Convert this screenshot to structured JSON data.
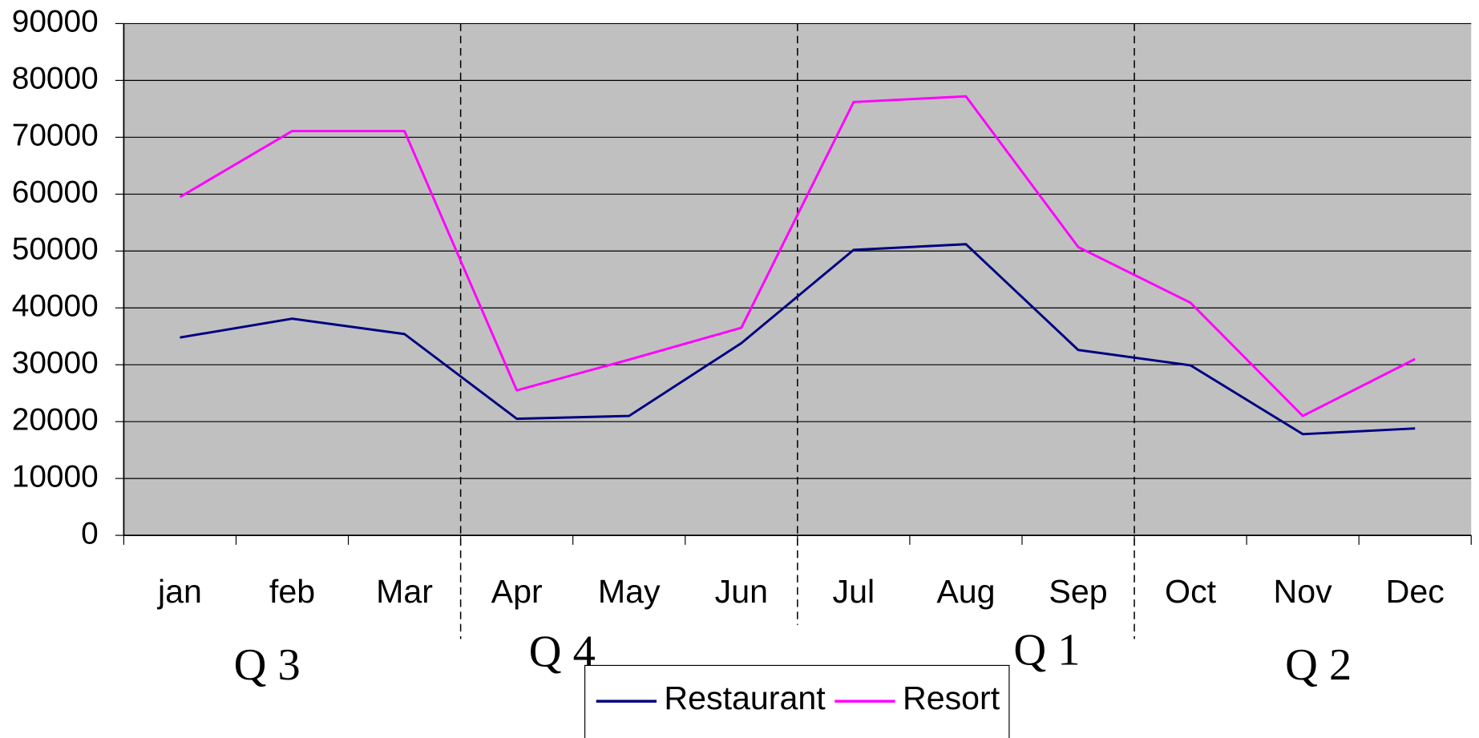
{
  "chart_data": {
    "type": "line",
    "categories": [
      "jan",
      "feb",
      "Mar",
      "Apr",
      "May",
      "Jun",
      "Jul",
      "Aug",
      "Sep",
      "Oct",
      "Nov",
      "Dec"
    ],
    "series": [
      {
        "name": "Restaurant",
        "color": "#000080",
        "values": [
          34800,
          38100,
          35400,
          20500,
          21000,
          33800,
          50200,
          51200,
          32600,
          29900,
          17800,
          18800
        ]
      },
      {
        "name": "Resort",
        "color": "#ff00ff",
        "values": [
          59500,
          71100,
          71100,
          25500,
          30900,
          36500,
          76200,
          77200,
          50700,
          40900,
          21000,
          31000
        ]
      }
    ],
    "annotations": [
      "Q 3",
      "Q 4",
      "Q 1",
      "Q 2"
    ],
    "ylim": [
      0,
      90000
    ],
    "yticks": [
      0,
      10000,
      20000,
      30000,
      40000,
      50000,
      60000,
      70000,
      80000,
      90000
    ],
    "grid": true,
    "legend": "bottom"
  }
}
